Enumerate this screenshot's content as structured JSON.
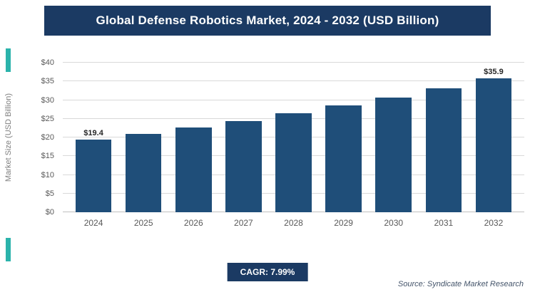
{
  "title": "Global Defense Robotics Market, 2024 - 2032 (USD Billion)",
  "colors": {
    "navy": "#1b3a63",
    "bar": "#1f4e79",
    "teal": "#2bb3ab",
    "grid": "#d9d9d9",
    "axis_text": "#595959"
  },
  "chart_data": {
    "type": "bar",
    "title": "Global Defense Robotics Market, 2024 - 2032 (USD Billion)",
    "categories": [
      "2024",
      "2025",
      "2026",
      "2027",
      "2028",
      "2029",
      "2030",
      "2031",
      "2032"
    ],
    "values": [
      19.4,
      20.9,
      22.6,
      24.4,
      26.4,
      28.5,
      30.7,
      33.1,
      35.9
    ],
    "bar_labels": [
      "$19.4",
      "",
      "",
      "",
      "",
      "",
      "",
      "",
      "$35.9"
    ],
    "xlabel": "",
    "ylabel": "Market Size (USD Billion)",
    "ylim": [
      0,
      40
    ],
    "ytick_step": 5,
    "ytick_prefix": "$",
    "grid": true,
    "legend": "none",
    "bar_color": "#1f4e79"
  },
  "footer": {
    "cagr_label": "CAGR: 7.99%",
    "source": "Source: Syndicate Market Research"
  }
}
